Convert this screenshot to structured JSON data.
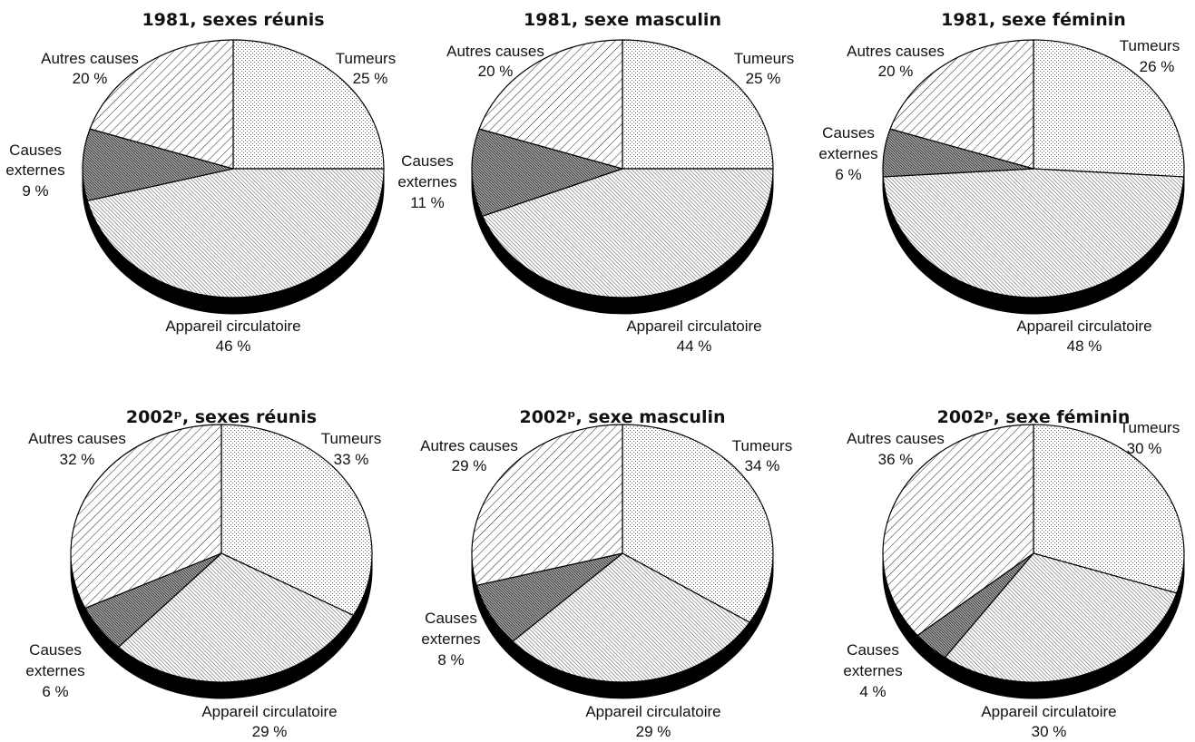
{
  "chart_data": [
    {
      "type": "pie",
      "title": "1981, sexes réunis",
      "slices": [
        {
          "label": "Tumeurs",
          "value": 25,
          "value_label": "25 %",
          "pattern": "dots"
        },
        {
          "label": "Appareil circulatoire",
          "value": 46,
          "value_label": "46 %",
          "pattern": "dense-diagonal"
        },
        {
          "label": "Causes externes",
          "value": 9,
          "value_label": "9 %",
          "pattern": "crosshatch"
        },
        {
          "label": "Autres causes",
          "value": 20,
          "value_label": "20 %",
          "pattern": "wide-diagonal"
        }
      ]
    },
    {
      "type": "pie",
      "title": "1981, sexe masculin",
      "slices": [
        {
          "label": "Tumeurs",
          "value": 25,
          "value_label": "25 %",
          "pattern": "dots"
        },
        {
          "label": "Appareil circulatoire",
          "value": 44,
          "value_label": "44 %",
          "pattern": "dense-diagonal"
        },
        {
          "label": "Causes externes",
          "value": 11,
          "value_label": "11 %",
          "pattern": "crosshatch"
        },
        {
          "label": "Autres causes",
          "value": 20,
          "value_label": "20 %",
          "pattern": "wide-diagonal"
        }
      ]
    },
    {
      "type": "pie",
      "title": "1981, sexe féminin",
      "slices": [
        {
          "label": "Tumeurs",
          "value": 26,
          "value_label": "26 %",
          "pattern": "dots"
        },
        {
          "label": "Appareil circulatoire",
          "value": 48,
          "value_label": "48 %",
          "pattern": "dense-diagonal"
        },
        {
          "label": "Causes externes",
          "value": 6,
          "value_label": "6 %",
          "pattern": "crosshatch"
        },
        {
          "label": "Autres causes",
          "value": 20,
          "value_label": "20 %",
          "pattern": "wide-diagonal"
        }
      ]
    },
    {
      "type": "pie",
      "title": "2002ᵖ, sexes réunis",
      "slices": [
        {
          "label": "Tumeurs",
          "value": 33,
          "value_label": "33 %",
          "pattern": "dots"
        },
        {
          "label": "Appareil circulatoire",
          "value": 29,
          "value_label": "29 %",
          "pattern": "dense-diagonal"
        },
        {
          "label": "Causes externes",
          "value": 6,
          "value_label": "6 %",
          "pattern": "crosshatch"
        },
        {
          "label": "Autres causes",
          "value": 32,
          "value_label": "32 %",
          "pattern": "wide-diagonal"
        }
      ]
    },
    {
      "type": "pie",
      "title": "2002ᵖ, sexe masculin",
      "slices": [
        {
          "label": "Tumeurs",
          "value": 34,
          "value_label": "34 %",
          "pattern": "dots"
        },
        {
          "label": "Appareil circulatoire",
          "value": 29,
          "value_label": "29 %",
          "pattern": "dense-diagonal"
        },
        {
          "label": "Causes externes",
          "value": 8,
          "value_label": "8 %",
          "pattern": "crosshatch"
        },
        {
          "label": "Autres causes",
          "value": 29,
          "value_label": "29 %",
          "pattern": "wide-diagonal"
        }
      ]
    },
    {
      "type": "pie",
      "title": "2002ᵖ, sexe féminin",
      "slices": [
        {
          "label": "Tumeurs",
          "value": 30,
          "value_label": "30 %",
          "pattern": "dots"
        },
        {
          "label": "Appareil circulatoire",
          "value": 30,
          "value_label": "30 %",
          "pattern": "dense-diagonal"
        },
        {
          "label": "Causes externes",
          "value": 4,
          "value_label": "4 %",
          "pattern": "crosshatch"
        },
        {
          "label": "Autres causes",
          "value": 36,
          "value_label": "36 %",
          "pattern": "wide-diagonal"
        }
      ]
    }
  ],
  "colors": {
    "outline": "#000000",
    "depth": "#000000",
    "background": "#ffffff"
  }
}
